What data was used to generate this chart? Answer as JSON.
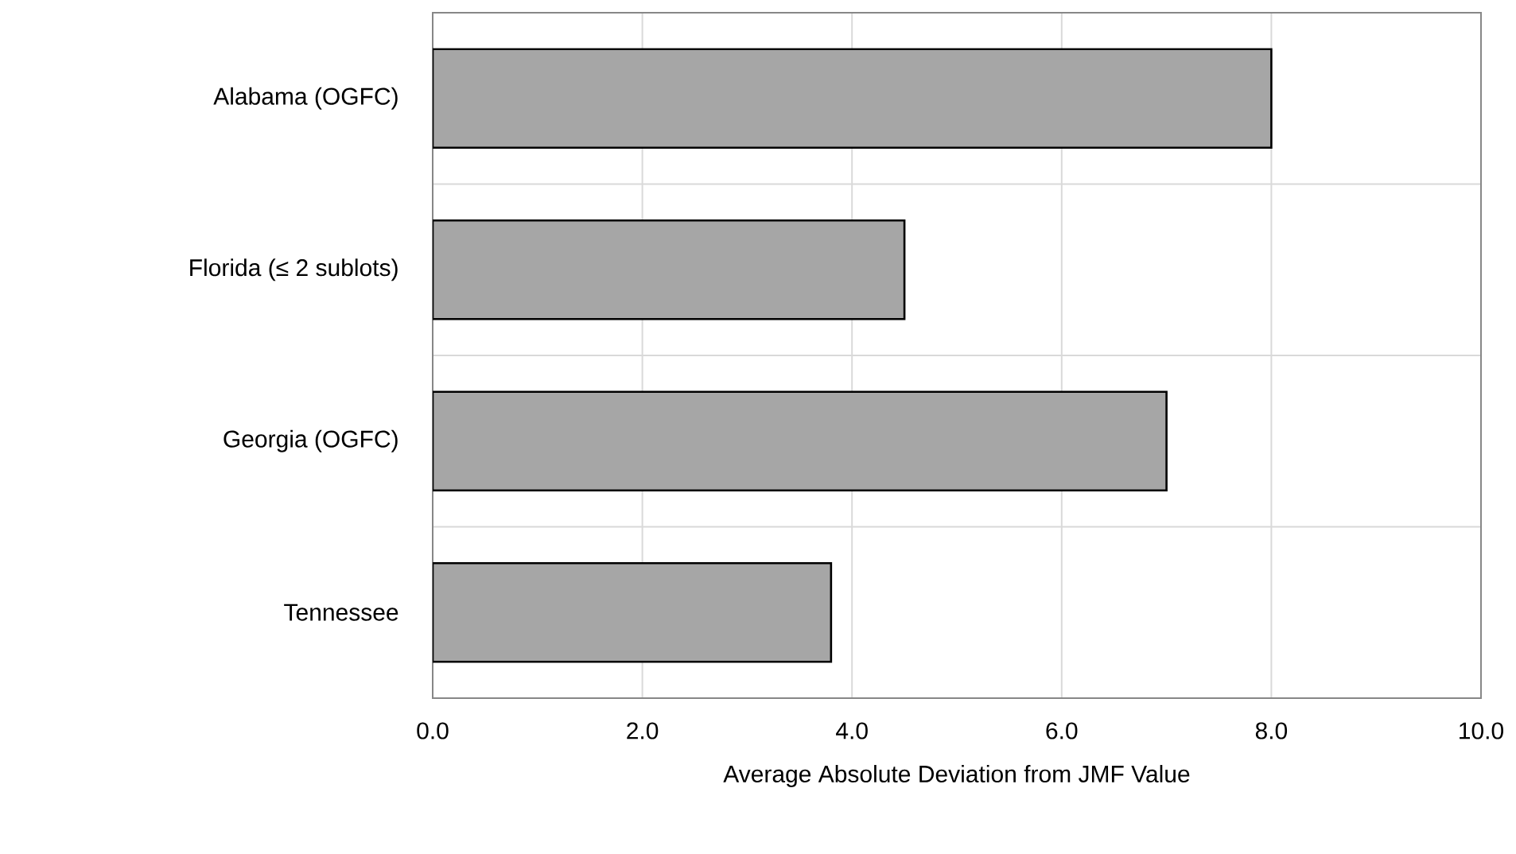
{
  "chart_data": {
    "type": "bar",
    "orientation": "horizontal",
    "xlabel": "Average Absolute Deviation from JMF Value",
    "categories": [
      "Alabama (OGFC)",
      "Florida (≤ 2 sublots)",
      "Georgia (OGFC)",
      "Tennessee"
    ],
    "values": [
      8.0,
      4.5,
      7.0,
      3.8
    ],
    "color": "#a6a6a6",
    "xlim": [
      0,
      10
    ],
    "xticks": [
      {
        "value": 0,
        "label": "0.0"
      },
      {
        "value": 2,
        "label": "2.0"
      },
      {
        "value": 4,
        "label": "4.0"
      },
      {
        "value": 6,
        "label": "6.0"
      },
      {
        "value": 8,
        "label": "8.0"
      },
      {
        "value": 10,
        "label": "10.0"
      }
    ],
    "grid": true
  }
}
